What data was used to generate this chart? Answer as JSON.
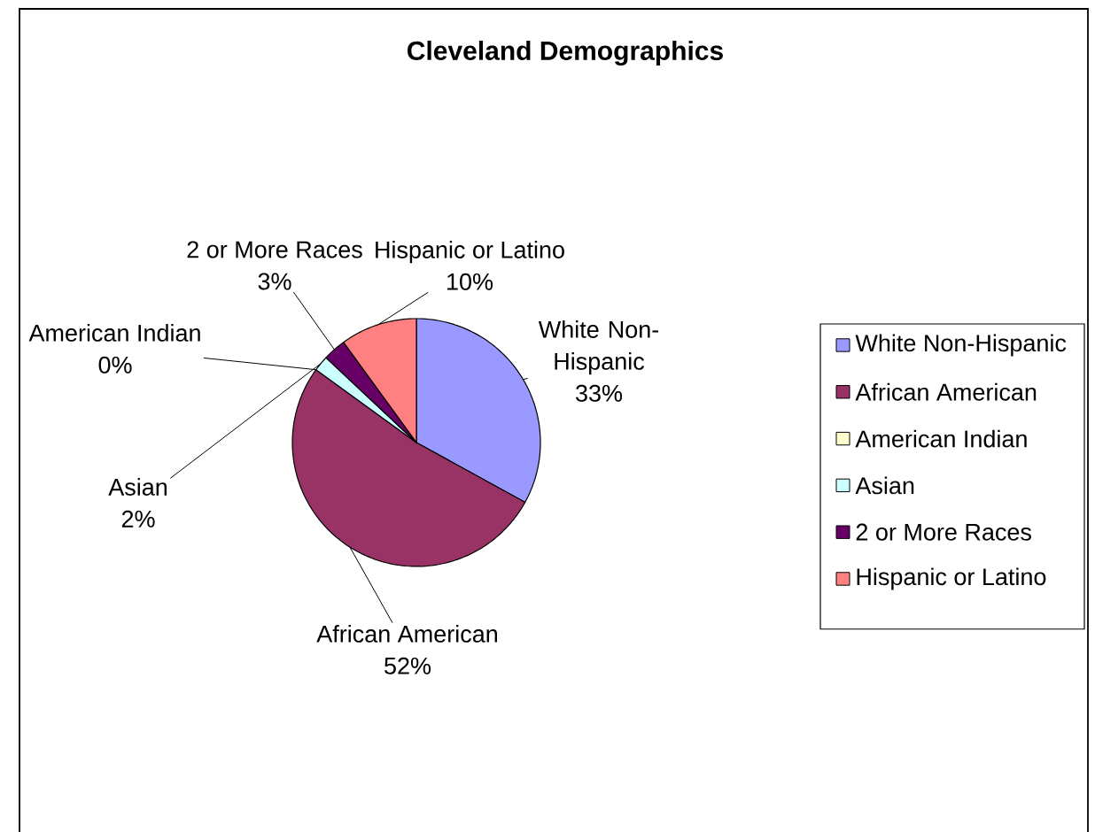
{
  "chart_data": {
    "type": "pie",
    "title": "Cleveland Demographics",
    "categories": [
      "White Non-Hispanic",
      "African American",
      "American Indian",
      "Asian",
      "2 or More Races",
      "Hispanic or Latino"
    ],
    "values": [
      33,
      52,
      0,
      2,
      3,
      10
    ],
    "colors": [
      "#9999ff",
      "#993366",
      "#ffffcc",
      "#ccffff",
      "#660066",
      "#ff8080"
    ],
    "value_labels": [
      "33%",
      "52%",
      "0%",
      "2%",
      "3%",
      "10%"
    ],
    "legend": "right"
  }
}
